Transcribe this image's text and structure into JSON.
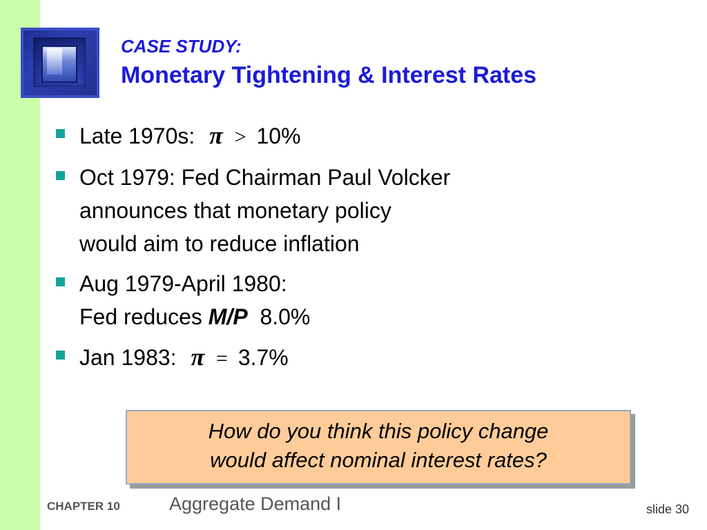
{
  "header": {
    "kicker": "CASE STUDY:",
    "title": "Monetary Tightening & Interest Rates"
  },
  "bullets": [
    {
      "text": "Late 1970s:",
      "symbol": "π",
      "operator": ">",
      "value": "10%"
    },
    {
      "lines": [
        "Oct 1979:  Fed Chairman Paul Volcker",
        "announces that monetary policy",
        "would aim to reduce inflation"
      ]
    },
    {
      "line1": "Aug 1979-April 1980:",
      "prefix": "Fed reduces",
      "emph": "M/P",
      "value": "8.0%"
    },
    {
      "text": "Jan 1983:",
      "symbol": "π",
      "operator": "=",
      "value": "3.7%"
    }
  ],
  "question": {
    "line1": "How do you think this policy change",
    "line2": "would affect nominal interest rates?"
  },
  "footer": {
    "chapter": "CHAPTER 10",
    "chapter_title": "Aggregate Demand I",
    "slide": "slide 30"
  },
  "colors": {
    "title": "#1b1bd6",
    "left_strip": "#ccffaa",
    "bullet_marker": "#14a39a",
    "question_box": "#ffcc99"
  },
  "icons": {
    "logo": "window-shaft-logo",
    "bullet": "square-bullet"
  }
}
